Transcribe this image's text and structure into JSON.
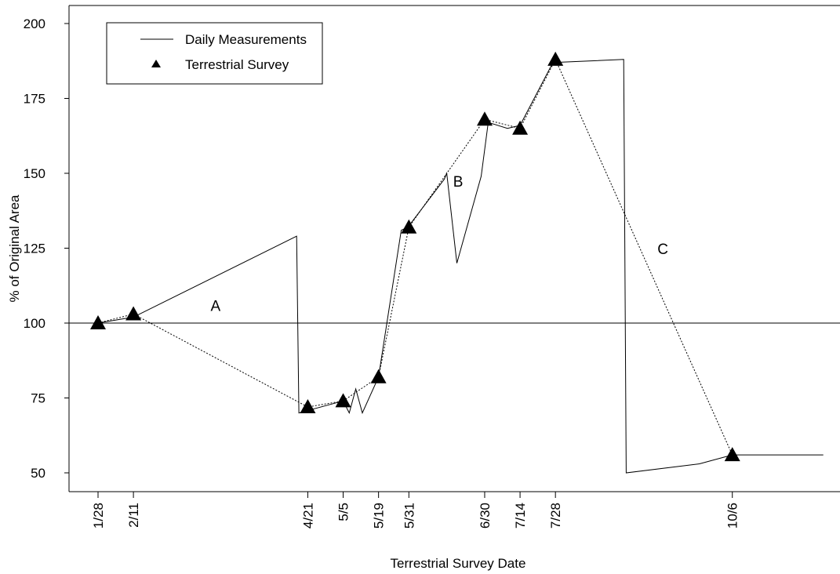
{
  "chart_data": {
    "type": "line",
    "title": "",
    "xlabel": "Terrestrial Survey Date",
    "ylabel": "% of Original Area",
    "yticks": [
      "50",
      "75",
      "100",
      "125",
      "150",
      "175",
      "200"
    ],
    "ylim": [
      43,
      205
    ],
    "xlim": [
      0,
      265
    ],
    "grid": false,
    "legend_position": "top-left",
    "reference_line": 100,
    "xtick_labels": [
      {
        "day": 0,
        "label": "1/28"
      },
      {
        "day": 14,
        "label": "2/11"
      },
      {
        "day": 83,
        "label": "4/21"
      },
      {
        "day": 97,
        "label": "5/5"
      },
      {
        "day": 111,
        "label": "5/19"
      },
      {
        "day": 123,
        "label": "5/31"
      },
      {
        "day": 153,
        "label": "6/30"
      },
      {
        "day": 167,
        "label": "7/14"
      },
      {
        "day": 181,
        "label": "7/28"
      },
      {
        "day": 251,
        "label": "10/6"
      }
    ],
    "series": [
      {
        "name": "Daily Measurements",
        "style": "solid",
        "x": [
          0,
          14,
          78.6,
          79.5,
          97,
          99.4,
          102,
          104.6,
          111,
          120,
          122.6,
          137,
          138,
          142,
          151.6,
          154.4,
          162,
          167,
          180,
          208,
          209,
          238,
          251,
          287
        ],
        "y": [
          100,
          102,
          129,
          70,
          74,
          70,
          78,
          70,
          82,
          131,
          132,
          148,
          150,
          120,
          149,
          167,
          165,
          166,
          187,
          188,
          50,
          53,
          56,
          56
        ]
      },
      {
        "name": "Terrestrial Survey",
        "style": "dotted",
        "marker": "triangle",
        "x": [
          0,
          14,
          83,
          97,
          111,
          123,
          153,
          167,
          181,
          251
        ],
        "y": [
          100,
          103,
          72,
          74,
          82,
          132,
          168,
          165,
          188,
          56
        ]
      }
    ],
    "annotations": [
      {
        "text": "A",
        "x": 46.5,
        "y": 104
      },
      {
        "text": "B",
        "x": 142.5,
        "y": 145.5
      },
      {
        "text": "C",
        "x": 223.5,
        "y": 123
      }
    ]
  }
}
